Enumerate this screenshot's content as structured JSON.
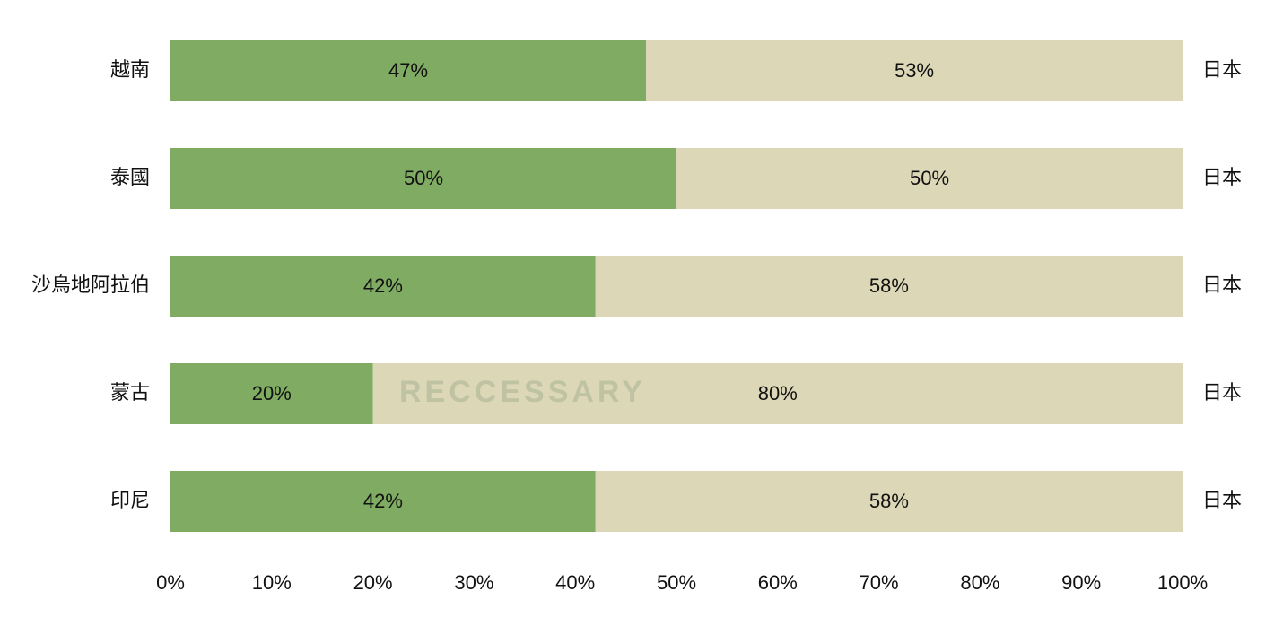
{
  "chart_data": {
    "type": "stacked-bar-horizontal",
    "categories": [
      "越南",
      "泰國",
      "沙烏地阿拉伯",
      "蒙古",
      "印尼"
    ],
    "right_categories": [
      "日本",
      "日本",
      "日本",
      "日本",
      "日本"
    ],
    "series": [
      {
        "color": "#7fab62",
        "values": [
          47,
          50,
          42,
          20,
          42
        ],
        "value_labels": [
          "47%",
          "50%",
          "42%",
          "20%",
          "42%"
        ]
      },
      {
        "color": "#dcd7b6",
        "values": [
          53,
          50,
          58,
          80,
          58
        ],
        "value_labels": [
          "53%",
          "50%",
          "58%",
          "80%",
          "58%"
        ]
      }
    ],
    "xlim": [
      0,
      100
    ],
    "xticks": [
      {
        "value": 0,
        "label": "0%"
      },
      {
        "value": 10,
        "label": "10%"
      },
      {
        "value": 20,
        "label": "20%"
      },
      {
        "value": 30,
        "label": "30%"
      },
      {
        "value": 40,
        "label": "40%"
      },
      {
        "value": 50,
        "label": "50%"
      },
      {
        "value": 60,
        "label": "60%"
      },
      {
        "value": 70,
        "label": "70%"
      },
      {
        "value": 80,
        "label": "80%"
      },
      {
        "value": 90,
        "label": "90%"
      },
      {
        "value": 100,
        "label": "100%"
      }
    ],
    "watermark": "RECCESSARY"
  }
}
